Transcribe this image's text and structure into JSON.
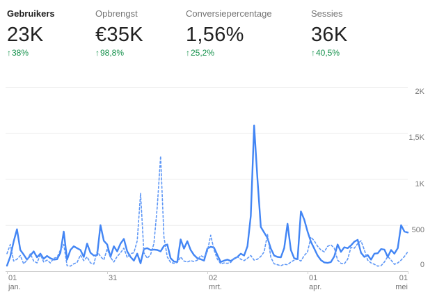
{
  "metrics": {
    "delta_arrow": "↑",
    "items": [
      {
        "label": "Gebruikers",
        "value": "23K",
        "delta": "38%",
        "selected": true
      },
      {
        "label": "Opbrengst",
        "value": "€35K",
        "delta": "98,8%",
        "selected": false
      },
      {
        "label": "Conversiepercentage",
        "value": "1,56%",
        "delta": "25,2%",
        "selected": false
      },
      {
        "label": "Sessies",
        "value": "36K",
        "delta": "40,5%",
        "selected": false
      }
    ]
  },
  "colors": {
    "current_line": "#4285f4",
    "previous_line": "#5e97f6",
    "positive_green": "#13904a",
    "grid": "#ececec",
    "axis": "#cfcfcf",
    "label_gray": "#757575",
    "value_dark": "#212121"
  },
  "chart_data": {
    "type": "line",
    "title": "",
    "xlabel": "",
    "ylabel": "",
    "grid": true,
    "legend": "none",
    "x_axis": {
      "range_days": [
        0,
        120
      ],
      "ticks": [
        {
          "day": 0,
          "line1": "01",
          "line2": "jan.",
          "align": "left"
        },
        {
          "day": 30,
          "line1": "31",
          "line2": "",
          "align": "left"
        },
        {
          "day": 60,
          "line1": "02",
          "line2": "mrt.",
          "align": "left"
        },
        {
          "day": 90,
          "line1": "01",
          "line2": "apr.",
          "align": "left"
        },
        {
          "day": 120,
          "line1": "01",
          "line2": "mei",
          "align": "right"
        }
      ]
    },
    "y_axis": {
      "range": [
        0,
        2000
      ],
      "tick_values": [
        0,
        500,
        1000,
        1500,
        2000
      ],
      "tick_labels": [
        "0",
        "500",
        "1K",
        "1,5K",
        "2K"
      ]
    },
    "series": [
      {
        "name": "current-period",
        "style": "solid",
        "color": "#4285f4",
        "points": [
          [
            0,
            60
          ],
          [
            1,
            160
          ],
          [
            2,
            320
          ],
          [
            3,
            455
          ],
          [
            4,
            230
          ],
          [
            5,
            180
          ],
          [
            6,
            125
          ],
          [
            7,
            170
          ],
          [
            8,
            215
          ],
          [
            9,
            150
          ],
          [
            10,
            190
          ],
          [
            11,
            135
          ],
          [
            12,
            165
          ],
          [
            13,
            140
          ],
          [
            14,
            125
          ],
          [
            15,
            130
          ],
          [
            16,
            200
          ],
          [
            17,
            430
          ],
          [
            18,
            125
          ],
          [
            19,
            230
          ],
          [
            20,
            270
          ],
          [
            21,
            250
          ],
          [
            22,
            230
          ],
          [
            23,
            155
          ],
          [
            24,
            300
          ],
          [
            25,
            200
          ],
          [
            26,
            170
          ],
          [
            27,
            175
          ],
          [
            28,
            500
          ],
          [
            29,
            330
          ],
          [
            30,
            290
          ],
          [
            31,
            155
          ],
          [
            32,
            270
          ],
          [
            33,
            215
          ],
          [
            34,
            300
          ],
          [
            35,
            350
          ],
          [
            36,
            215
          ],
          [
            37,
            155
          ],
          [
            38,
            115
          ],
          [
            39,
            190
          ],
          [
            40,
            85
          ],
          [
            41,
            240
          ],
          [
            42,
            250
          ],
          [
            43,
            230
          ],
          [
            44,
            235
          ],
          [
            45,
            230
          ],
          [
            46,
            215
          ],
          [
            47,
            275
          ],
          [
            48,
            290
          ],
          [
            49,
            140
          ],
          [
            50,
            105
          ],
          [
            51,
            100
          ],
          [
            52,
            345
          ],
          [
            53,
            245
          ],
          [
            54,
            325
          ],
          [
            55,
            230
          ],
          [
            56,
            175
          ],
          [
            57,
            140
          ],
          [
            58,
            130
          ],
          [
            59,
            115
          ],
          [
            60,
            245
          ],
          [
            61,
            265
          ],
          [
            62,
            255
          ],
          [
            63,
            175
          ],
          [
            64,
            100
          ],
          [
            65,
            115
          ],
          [
            66,
            125
          ],
          [
            67,
            110
          ],
          [
            68,
            135
          ],
          [
            69,
            155
          ],
          [
            70,
            190
          ],
          [
            71,
            170
          ],
          [
            72,
            270
          ],
          [
            73,
            600
          ],
          [
            74,
            1580
          ],
          [
            75,
            1000
          ],
          [
            76,
            480
          ],
          [
            77,
            420
          ],
          [
            78,
            360
          ],
          [
            79,
            245
          ],
          [
            80,
            170
          ],
          [
            81,
            155
          ],
          [
            82,
            150
          ],
          [
            83,
            250
          ],
          [
            84,
            515
          ],
          [
            85,
            230
          ],
          [
            86,
            140
          ],
          [
            87,
            130
          ],
          [
            88,
            650
          ],
          [
            89,
            560
          ],
          [
            90,
            430
          ],
          [
            91,
            320
          ],
          [
            92,
            245
          ],
          [
            93,
            170
          ],
          [
            94,
            120
          ],
          [
            95,
            95
          ],
          [
            96,
            90
          ],
          [
            97,
            100
          ],
          [
            98,
            160
          ],
          [
            99,
            290
          ],
          [
            100,
            210
          ],
          [
            101,
            260
          ],
          [
            102,
            250
          ],
          [
            103,
            280
          ],
          [
            104,
            320
          ],
          [
            105,
            340
          ],
          [
            106,
            200
          ],
          [
            107,
            155
          ],
          [
            108,
            175
          ],
          [
            109,
            125
          ],
          [
            110,
            190
          ],
          [
            111,
            195
          ],
          [
            112,
            240
          ],
          [
            113,
            235
          ],
          [
            114,
            155
          ],
          [
            115,
            230
          ],
          [
            116,
            190
          ],
          [
            117,
            250
          ],
          [
            118,
            500
          ],
          [
            119,
            430
          ],
          [
            120,
            420
          ]
        ]
      },
      {
        "name": "previous-period",
        "style": "dashed",
        "color": "#5e97f6",
        "points": [
          [
            0,
            190
          ],
          [
            1,
            290
          ],
          [
            2,
            110
          ],
          [
            3,
            130
          ],
          [
            4,
            170
          ],
          [
            5,
            80
          ],
          [
            6,
            120
          ],
          [
            7,
            190
          ],
          [
            8,
            110
          ],
          [
            9,
            90
          ],
          [
            10,
            180
          ],
          [
            11,
            100
          ],
          [
            12,
            120
          ],
          [
            13,
            90
          ],
          [
            14,
            140
          ],
          [
            15,
            150
          ],
          [
            16,
            230
          ],
          [
            17,
            290
          ],
          [
            18,
            60
          ],
          [
            19,
            55
          ],
          [
            20,
            80
          ],
          [
            21,
            95
          ],
          [
            22,
            175
          ],
          [
            23,
            115
          ],
          [
            24,
            155
          ],
          [
            25,
            90
          ],
          [
            26,
            77
          ],
          [
            27,
            215
          ],
          [
            28,
            160
          ],
          [
            29,
            123
          ],
          [
            30,
            240
          ],
          [
            31,
            150
          ],
          [
            32,
            100
          ],
          [
            33,
            160
          ],
          [
            34,
            200
          ],
          [
            35,
            250
          ],
          [
            36,
            150
          ],
          [
            37,
            190
          ],
          [
            38,
            200
          ],
          [
            39,
            330
          ],
          [
            40,
            845
          ],
          [
            41,
            200
          ],
          [
            42,
            140
          ],
          [
            43,
            180
          ],
          [
            44,
            300
          ],
          [
            45,
            700
          ],
          [
            46,
            1250
          ],
          [
            47,
            370
          ],
          [
            48,
            155
          ],
          [
            49,
            95
          ],
          [
            50,
            85
          ],
          [
            51,
            95
          ],
          [
            52,
            155
          ],
          [
            53,
            110
          ],
          [
            54,
            100
          ],
          [
            55,
            115
          ],
          [
            56,
            105
          ],
          [
            57,
            120
          ],
          [
            58,
            170
          ],
          [
            59,
            150
          ],
          [
            60,
            215
          ],
          [
            61,
            390
          ],
          [
            62,
            230
          ],
          [
            63,
            130
          ],
          [
            64,
            80
          ],
          [
            65,
            90
          ],
          [
            66,
            85
          ],
          [
            67,
            95
          ],
          [
            68,
            140
          ],
          [
            69,
            155
          ],
          [
            70,
            130
          ],
          [
            71,
            115
          ],
          [
            72,
            140
          ],
          [
            73,
            170
          ],
          [
            74,
            120
          ],
          [
            75,
            130
          ],
          [
            76,
            160
          ],
          [
            77,
            210
          ],
          [
            78,
            400
          ],
          [
            79,
            150
          ],
          [
            80,
            80
          ],
          [
            81,
            70
          ],
          [
            82,
            60
          ],
          [
            83,
            75
          ],
          [
            84,
            70
          ],
          [
            85,
            100
          ],
          [
            86,
            120
          ],
          [
            87,
            130
          ],
          [
            88,
            110
          ],
          [
            89,
            170
          ],
          [
            90,
            210
          ],
          [
            91,
            370
          ],
          [
            92,
            330
          ],
          [
            93,
            270
          ],
          [
            94,
            230
          ],
          [
            95,
            210
          ],
          [
            96,
            270
          ],
          [
            97,
            285
          ],
          [
            98,
            250
          ],
          [
            99,
            120
          ],
          [
            100,
            85
          ],
          [
            101,
            80
          ],
          [
            102,
            130
          ],
          [
            103,
            260
          ],
          [
            104,
            250
          ],
          [
            105,
            300
          ],
          [
            106,
            330
          ],
          [
            107,
            230
          ],
          [
            108,
            120
          ],
          [
            109,
            90
          ],
          [
            110,
            75
          ],
          [
            111,
            55
          ],
          [
            112,
            60
          ],
          [
            113,
            100
          ],
          [
            114,
            160
          ],
          [
            115,
            120
          ],
          [
            116,
            75
          ],
          [
            117,
            90
          ],
          [
            118,
            120
          ],
          [
            119,
            160
          ],
          [
            120,
            210
          ]
        ]
      }
    ]
  }
}
